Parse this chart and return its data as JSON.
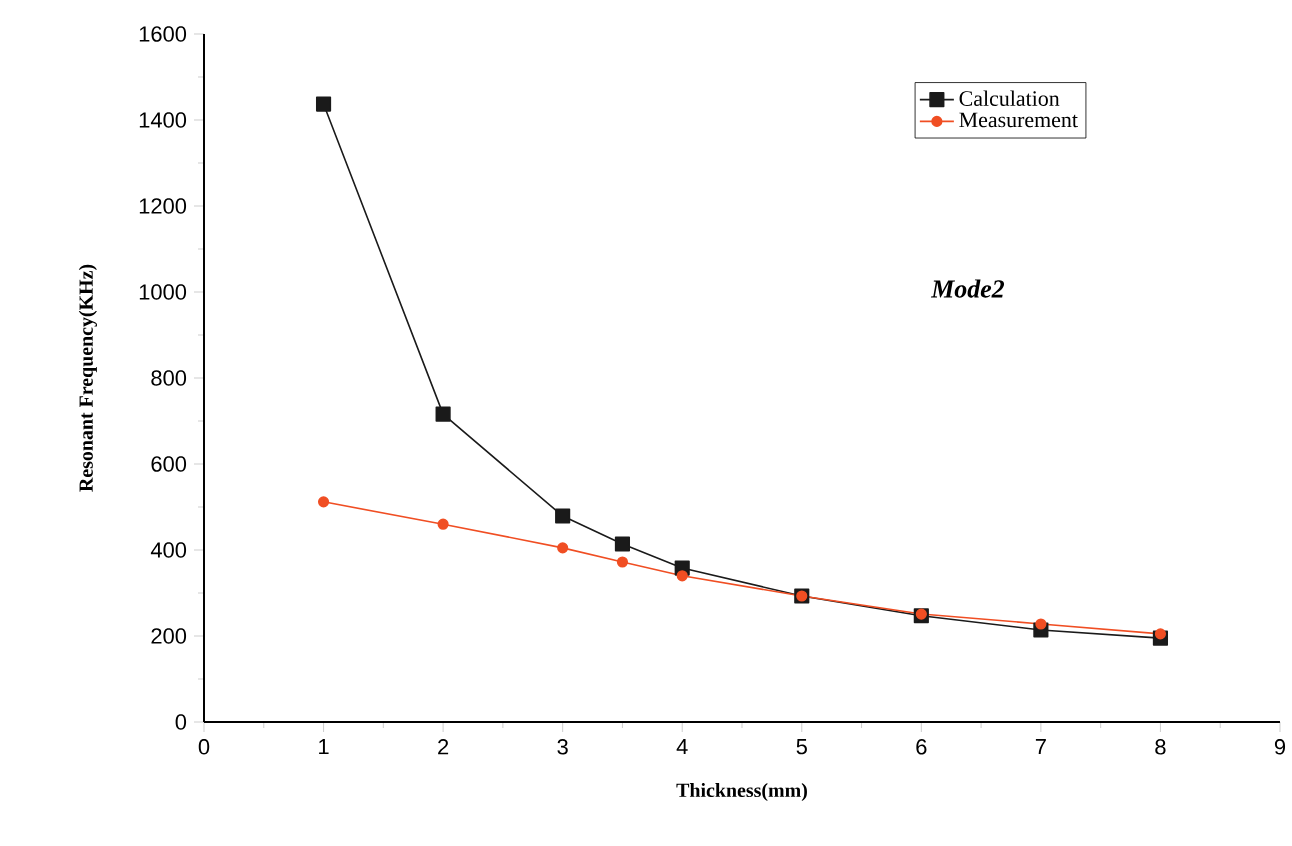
{
  "chart_data": {
    "type": "line",
    "xlabel": "Thickness(mm)",
    "ylabel": "Resonant Frequency(KHz)",
    "annotations": [
      "*Mode2*"
    ],
    "series": [
      {
        "name": "Calculation",
        "color": "#1a1a1a",
        "marker": "square",
        "x": [
          1,
          2,
          3,
          3.5,
          4,
          5,
          6,
          7,
          8
        ],
        "values": [
          1437,
          716,
          479,
          414,
          358,
          293,
          247,
          214,
          195
        ]
      },
      {
        "name": "Measurement",
        "color": "#f04e23",
        "marker": "circle",
        "x": [
          1,
          2,
          3,
          3.5,
          4,
          5,
          6,
          7,
          8
        ],
        "values": [
          512,
          460,
          405,
          372,
          340,
          293,
          251,
          228,
          205
        ]
      }
    ],
    "xlim": [
      0,
      9
    ],
    "xticks": [
      0,
      1,
      2,
      3,
      4,
      5,
      6,
      7,
      8,
      9
    ],
    "ylim": [
      0,
      1600
    ],
    "yticks": [
      0,
      200,
      400,
      600,
      800,
      1000,
      1200,
      1400,
      1600
    ],
    "grid": false,
    "legend": "top right",
    "line_style": "solid"
  }
}
